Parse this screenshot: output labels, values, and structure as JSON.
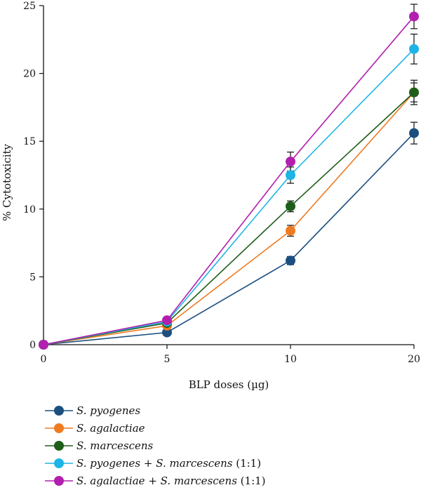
{
  "chart_data": {
    "type": "line",
    "x": [
      "0",
      "5",
      "10",
      "20"
    ],
    "xlabel": "BLP doses (µg)",
    "ylabel": "% Cytotoxicity",
    "ylim": [
      0,
      25
    ],
    "yticks": [
      0,
      5,
      10,
      15,
      20,
      25
    ],
    "grid": false,
    "legend_position": "bottom-left",
    "series": [
      {
        "name": "S. pyogenes",
        "italic_parts": [
          "S. pyogenes"
        ],
        "suffix": "",
        "color": "#1c4f80",
        "values": [
          0,
          0.9,
          6.2,
          15.6
        ],
        "errors": [
          0,
          0.1,
          0.3,
          0.8
        ]
      },
      {
        "name": "S. agalactiae",
        "italic_parts": [
          "S. agalactiae"
        ],
        "suffix": "",
        "color": "#ef7b21",
        "values": [
          0,
          1.4,
          8.4,
          18.6
        ],
        "errors": [
          0,
          0.1,
          0.4,
          0.7
        ]
      },
      {
        "name": "S. marcescens",
        "italic_parts": [
          "S. marcescens"
        ],
        "suffix": "",
        "color": "#1f5e1a",
        "values": [
          0,
          1.6,
          10.2,
          18.6
        ],
        "errors": [
          0,
          0.1,
          0.4,
          0.9
        ]
      },
      {
        "name": "S. pyogenes + S. marcescens (1:1)",
        "italic_parts": [
          "S. pyogenes",
          "S. marcescens"
        ],
        "suffix": "(1:1)",
        "color": "#1eb4e6",
        "values": [
          0,
          1.7,
          12.5,
          21.8
        ],
        "errors": [
          0,
          0.1,
          0.6,
          1.1
        ]
      },
      {
        "name": "S. agalactiae + S. marcescens (1:1)",
        "italic_parts": [
          "S. agalactiae",
          "S. marcescens"
        ],
        "suffix": "(1:1)",
        "color": "#b21fae",
        "values": [
          0,
          1.8,
          13.5,
          24.2
        ],
        "errors": [
          0,
          0.1,
          0.7,
          0.9
        ]
      }
    ]
  }
}
